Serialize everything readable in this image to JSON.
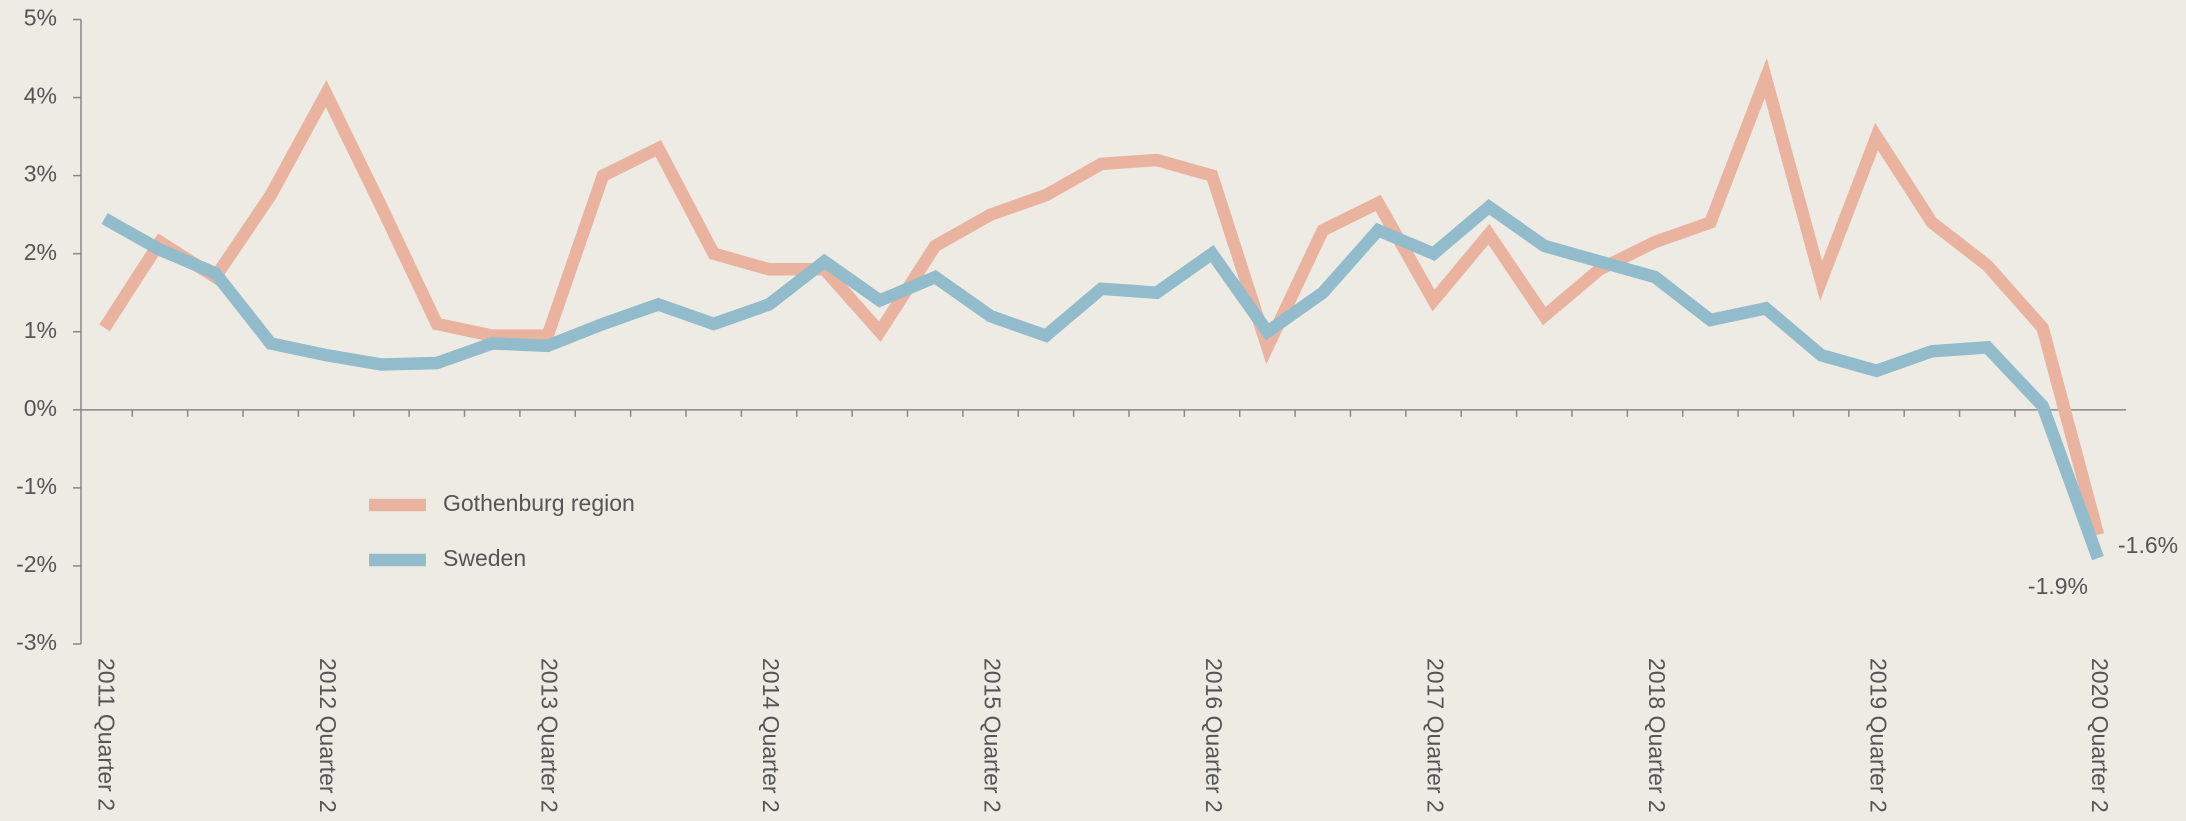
{
  "chart_data": {
    "type": "line",
    "categories": [
      "2011 Quarter 2",
      null,
      null,
      null,
      "2012 Quarter 2",
      null,
      null,
      null,
      "2013 Quarter 2",
      null,
      null,
      null,
      "2014 Quarter 2",
      null,
      null,
      null,
      "2015 Quarter 2",
      null,
      null,
      null,
      "2016 Quarter 2",
      null,
      null,
      null,
      "2017 Quarter 2",
      null,
      null,
      null,
      "2018 Quarter 2",
      null,
      null,
      null,
      "2019 Quarter 2",
      null,
      null,
      null,
      "2020 Quarter 2"
    ],
    "series": [
      {
        "name": "Gothenburg region",
        "color": "#e9b3a0",
        "values": [
          1.05,
          2.15,
          1.7,
          2.75,
          4.05,
          2.6,
          1.1,
          0.95,
          0.95,
          3.0,
          3.35,
          2.0,
          1.8,
          1.8,
          1.0,
          2.1,
          2.5,
          2.75,
          3.15,
          3.2,
          3.0,
          0.8,
          2.3,
          2.65,
          1.4,
          2.25,
          1.2,
          1.8,
          2.15,
          2.4,
          4.25,
          1.65,
          3.5,
          2.4,
          1.85,
          1.05,
          -1.6
        ],
        "value_labels": [
          null,
          null,
          null,
          null,
          null,
          null,
          null,
          null,
          null,
          null,
          null,
          null,
          null,
          null,
          null,
          null,
          null,
          null,
          null,
          null,
          null,
          null,
          null,
          null,
          null,
          null,
          null,
          null,
          null,
          null,
          null,
          null,
          null,
          null,
          null,
          null,
          "-1.6%"
        ]
      },
      {
        "name": "Sweden",
        "color": "#92bbcc",
        "values": [
          2.45,
          2.05,
          1.75,
          0.85,
          0.7,
          0.58,
          0.6,
          0.85,
          0.82,
          1.1,
          1.35,
          1.1,
          1.35,
          1.9,
          1.4,
          1.7,
          1.2,
          0.95,
          1.55,
          1.5,
          2.0,
          1.0,
          1.5,
          2.3,
          2.0,
          2.6,
          2.1,
          1.9,
          1.7,
          1.15,
          1.3,
          0.7,
          0.5,
          0.75,
          0.8,
          0.05,
          -1.9
        ],
        "value_labels": [
          null,
          null,
          null,
          null,
          null,
          null,
          null,
          null,
          null,
          null,
          null,
          null,
          null,
          null,
          null,
          null,
          null,
          null,
          null,
          null,
          null,
          null,
          null,
          null,
          null,
          null,
          null,
          null,
          null,
          null,
          null,
          null,
          null,
          null,
          null,
          null,
          "-1.9%"
        ]
      }
    ],
    "ylim": [
      -3,
      5
    ],
    "yticks": [
      {
        "value": -3,
        "label": "-3%"
      },
      {
        "value": -2,
        "label": "-2%"
      },
      {
        "value": -1,
        "label": "-1%"
      },
      {
        "value": 0,
        "label": "0%"
      },
      {
        "value": 1,
        "label": "1%"
      },
      {
        "value": 2,
        "label": "2%"
      },
      {
        "value": 3,
        "label": "3%"
      },
      {
        "value": 4,
        "label": "4%"
      },
      {
        "value": 5,
        "label": "5%"
      }
    ],
    "grid": false
  }
}
